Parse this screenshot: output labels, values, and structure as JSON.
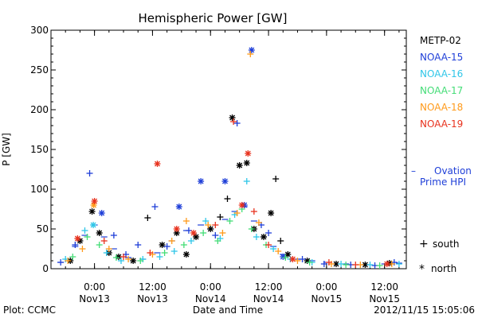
{
  "chart_data": {
    "type": "scatter",
    "title": "Hemispheric Power [GW]",
    "ylabel": "P [GW]",
    "xlabel": "Date and Time",
    "ylim": [
      0,
      300
    ],
    "yticks": [
      0,
      50,
      100,
      150,
      200,
      250,
      300
    ],
    "xlim": [
      "2012-11-12 15:00",
      "2012-11-15 16:30"
    ],
    "xticks": [
      {
        "t": "2012-11-13 00:00",
        "line1": "0:00",
        "line2": "Nov13"
      },
      {
        "t": "2012-11-13 12:00",
        "line1": "12:00",
        "line2": "Nov13"
      },
      {
        "t": "2012-11-14 00:00",
        "line1": "0:00",
        "line2": "Nov14"
      },
      {
        "t": "2012-11-14 12:00",
        "line1": "12:00",
        "line2": "Nov14"
      },
      {
        "t": "2012-11-15 00:00",
        "line1": "0:00",
        "line2": "Nov15"
      },
      {
        "t": "2012-11-15 12:00",
        "line1": "12:00",
        "line2": "Nov15"
      }
    ],
    "footer_left": "Plot: CCMC",
    "footer_right": "2012/11/15 15:05:06",
    "legend": {
      "placement": "right",
      "satellites": [
        {
          "name": "METP-02",
          "color": "#000000"
        },
        {
          "name": "NOAA-15",
          "color": "#1f3fd8"
        },
        {
          "name": "NOAA-16",
          "color": "#2fc6e8"
        },
        {
          "name": "NOAA-17",
          "color": "#44dd77"
        },
        {
          "name": "NOAA-18",
          "color": "#ff9a1a"
        },
        {
          "name": "NOAA-19",
          "color": "#e8321e"
        }
      ],
      "ovation_dash": "–",
      "ovation_label_1": "Ovation",
      "ovation_label_2": "Prime HPI",
      "ovation_color": "#1f3fd8",
      "south_symbol": "+",
      "south_label": "south",
      "north_symbol": "*",
      "north_label": "north"
    },
    "series": [
      {
        "name": "METP-02",
        "color": "#000000",
        "points": [
          [
            "2012-11-12 19:00",
            10,
            "*"
          ],
          [
            "2012-11-12 21:00",
            35,
            "*"
          ],
          [
            "2012-11-12 23:30",
            72,
            "*"
          ],
          [
            "2012-11-13 01:00",
            45,
            "*"
          ],
          [
            "2012-11-13 03:00",
            20,
            "*"
          ],
          [
            "2012-11-13 05:00",
            15,
            "*"
          ],
          [
            "2012-11-13 08:00",
            10,
            "*"
          ],
          [
            "2012-11-13 11:00",
            64,
            "+"
          ],
          [
            "2012-11-13 14:00",
            30,
            "*"
          ],
          [
            "2012-11-13 17:00",
            45,
            "*"
          ],
          [
            "2012-11-13 19:00",
            18,
            "*"
          ],
          [
            "2012-11-13 21:00",
            40,
            "*"
          ],
          [
            "2012-11-14 00:00",
            50,
            "*"
          ],
          [
            "2012-11-14 02:00",
            65,
            "+"
          ],
          [
            "2012-11-14 03:30",
            88,
            "+"
          ],
          [
            "2012-11-14 04:30",
            190,
            "*"
          ],
          [
            "2012-11-14 06:00",
            130,
            "*"
          ],
          [
            "2012-11-14 07:30",
            133,
            "*"
          ],
          [
            "2012-11-14 09:00",
            50,
            "*"
          ],
          [
            "2012-11-14 11:00",
            40,
            "*"
          ],
          [
            "2012-11-14 12:30",
            70,
            "*"
          ],
          [
            "2012-11-14 13:30",
            113,
            "+"
          ],
          [
            "2012-11-14 14:30",
            35,
            "+"
          ],
          [
            "2012-11-14 16:00",
            18,
            "*"
          ],
          [
            "2012-11-14 20:00",
            10,
            "*"
          ],
          [
            "2012-11-15 02:00",
            6,
            "*"
          ],
          [
            "2012-11-15 08:00",
            5,
            "*"
          ],
          [
            "2012-11-15 13:00",
            7,
            "*"
          ]
        ]
      },
      {
        "name": "NOAA-15",
        "color": "#1f3fd8",
        "points": [
          [
            "2012-11-12 17:00",
            8,
            "+"
          ],
          [
            "2012-11-12 20:00",
            30,
            "+"
          ],
          [
            "2012-11-12 23:00",
            120,
            "+"
          ],
          [
            "2012-11-13 01:30",
            70,
            "*"
          ],
          [
            "2012-11-13 04:00",
            42,
            "+"
          ],
          [
            "2012-11-13 06:30",
            18,
            "+"
          ],
          [
            "2012-11-13 09:00",
            30,
            "+"
          ],
          [
            "2012-11-13 12:30",
            78,
            "+"
          ],
          [
            "2012-11-13 15:00",
            28,
            "+"
          ],
          [
            "2012-11-13 17:30",
            78,
            "*"
          ],
          [
            "2012-11-13 19:30",
            48,
            "+"
          ],
          [
            "2012-11-13 22:00",
            110,
            "*"
          ],
          [
            "2012-11-14 01:00",
            42,
            "+"
          ],
          [
            "2012-11-14 03:00",
            110,
            "*"
          ],
          [
            "2012-11-14 05:30",
            183,
            "+"
          ],
          [
            "2012-11-14 07:00",
            80,
            "*"
          ],
          [
            "2012-11-14 08:30",
            275,
            "*"
          ],
          [
            "2012-11-14 10:30",
            55,
            "+"
          ],
          [
            "2012-11-14 12:00",
            45,
            "+"
          ],
          [
            "2012-11-14 15:00",
            15,
            "*"
          ],
          [
            "2012-11-14 19:00",
            12,
            "+"
          ],
          [
            "2012-11-14 23:30",
            6,
            "+"
          ],
          [
            "2012-11-15 05:00",
            5,
            "+"
          ],
          [
            "2012-11-15 10:00",
            4,
            "+"
          ],
          [
            "2012-11-15 14:00",
            8,
            "+"
          ]
        ]
      },
      {
        "name": "NOAA-16",
        "color": "#2fc6e8",
        "points": [
          [
            "2012-11-12 18:00",
            12,
            "+"
          ],
          [
            "2012-11-12 22:00",
            48,
            "+"
          ],
          [
            "2012-11-12 23:45",
            55,
            "*"
          ],
          [
            "2012-11-13 02:30",
            20,
            "+"
          ],
          [
            "2012-11-13 05:30",
            10,
            "+"
          ],
          [
            "2012-11-13 10:00",
            12,
            "+"
          ],
          [
            "2012-11-13 13:30",
            15,
            "+"
          ],
          [
            "2012-11-13 16:30",
            22,
            "+"
          ],
          [
            "2012-11-13 20:00",
            35,
            "+"
          ],
          [
            "2012-11-13 23:00",
            60,
            "+"
          ],
          [
            "2012-11-14 02:00",
            38,
            "+"
          ],
          [
            "2012-11-14 05:00",
            68,
            "+"
          ],
          [
            "2012-11-14 07:30",
            110,
            "+"
          ],
          [
            "2012-11-14 09:30",
            40,
            "+"
          ],
          [
            "2012-11-14 13:00",
            25,
            "+"
          ],
          [
            "2012-11-14 16:30",
            12,
            "+"
          ],
          [
            "2012-11-14 21:00",
            8,
            "+"
          ],
          [
            "2012-11-15 03:00",
            6,
            "+"
          ],
          [
            "2012-11-15 09:00",
            5,
            "+"
          ],
          [
            "2012-11-15 15:00",
            6,
            "+"
          ]
        ]
      },
      {
        "name": "NOAA-17",
        "color": "#44dd77",
        "points": [
          [
            "2012-11-12 19:30",
            15,
            "+"
          ],
          [
            "2012-11-12 22:30",
            40,
            "+"
          ],
          [
            "2012-11-13 01:00",
            30,
            "+"
          ],
          [
            "2012-11-13 04:30",
            14,
            "+"
          ],
          [
            "2012-11-13 09:30",
            10,
            "+"
          ],
          [
            "2012-11-13 14:30",
            20,
            "+"
          ],
          [
            "2012-11-13 18:30",
            30,
            "+"
          ],
          [
            "2012-11-13 22:30",
            45,
            "+"
          ],
          [
            "2012-11-14 01:30",
            35,
            "+"
          ],
          [
            "2012-11-14 04:00",
            60,
            "+"
          ],
          [
            "2012-11-14 06:30",
            75,
            "+"
          ],
          [
            "2012-11-14 08:30",
            50,
            "+"
          ],
          [
            "2012-11-14 11:30",
            30,
            "+"
          ],
          [
            "2012-11-14 15:30",
            14,
            "+"
          ],
          [
            "2012-11-14 20:30",
            8,
            "+"
          ],
          [
            "2012-11-15 04:00",
            5,
            "+"
          ],
          [
            "2012-11-15 11:00",
            4,
            "+"
          ]
        ]
      },
      {
        "name": "NOAA-18",
        "color": "#ff9a1a",
        "points": [
          [
            "2012-11-12 18:30",
            10,
            "+"
          ],
          [
            "2012-11-12 21:30",
            25,
            "+"
          ],
          [
            "2012-11-12 23:50",
            80,
            "*"
          ],
          [
            "2012-11-13 03:00",
            25,
            "+"
          ],
          [
            "2012-11-13 07:00",
            12,
            "+"
          ],
          [
            "2012-11-13 12:00",
            18,
            "+"
          ],
          [
            "2012-11-13 16:00",
            35,
            "+"
          ],
          [
            "2012-11-13 19:00",
            60,
            "+"
          ],
          [
            "2012-11-13 23:30",
            55,
            "+"
          ],
          [
            "2012-11-14 02:30",
            45,
            "+"
          ],
          [
            "2012-11-14 05:30",
            70,
            "+"
          ],
          [
            "2012-11-14 08:15",
            270,
            "+"
          ],
          [
            "2012-11-14 10:00",
            58,
            "+"
          ],
          [
            "2012-11-14 14:00",
            22,
            "+"
          ],
          [
            "2012-11-14 18:00",
            10,
            "+"
          ],
          [
            "2012-11-15 01:00",
            6,
            "+"
          ],
          [
            "2012-11-15 07:00",
            5,
            "+"
          ],
          [
            "2012-11-15 13:30",
            6,
            "+"
          ]
        ]
      },
      {
        "name": "NOAA-19",
        "color": "#e8321e",
        "points": [
          [
            "2012-11-12 20:30",
            38,
            "*"
          ],
          [
            "2012-11-13 00:00",
            85,
            "*"
          ],
          [
            "2012-11-13 02:00",
            35,
            "+"
          ],
          [
            "2012-11-13 06:00",
            15,
            "+"
          ],
          [
            "2012-11-13 11:30",
            20,
            "+"
          ],
          [
            "2012-11-13 13:00",
            132,
            "*"
          ],
          [
            "2012-11-13 17:00",
            50,
            "*"
          ],
          [
            "2012-11-13 20:30",
            45,
            "*"
          ],
          [
            "2012-11-14 01:00",
            55,
            "+"
          ],
          [
            "2012-11-14 04:45",
            185,
            "+"
          ],
          [
            "2012-11-14 06:30",
            80,
            "*"
          ],
          [
            "2012-11-14 07:45",
            145,
            "*"
          ],
          [
            "2012-11-14 09:00",
            72,
            "+"
          ],
          [
            "2012-11-14 12:00",
            30,
            "+"
          ],
          [
            "2012-11-14 17:00",
            12,
            "*"
          ],
          [
            "2012-11-15 00:30",
            8,
            "+"
          ],
          [
            "2012-11-15 06:00",
            5,
            "+"
          ],
          [
            "2012-11-15 12:30",
            6,
            "*"
          ]
        ]
      }
    ],
    "ovation_hpi": [
      [
        "2012-11-12 17:00",
        8
      ],
      [
        "2012-11-12 20:00",
        28
      ],
      [
        "2012-11-12 22:00",
        42
      ],
      [
        "2012-11-13 00:00",
        55
      ],
      [
        "2012-11-13 02:00",
        40
      ],
      [
        "2012-11-13 04:00",
        25
      ],
      [
        "2012-11-13 07:00",
        14
      ],
      [
        "2012-11-13 10:00",
        12
      ],
      [
        "2012-11-13 13:00",
        20
      ],
      [
        "2012-11-13 16:00",
        35
      ],
      [
        "2012-11-13 19:00",
        48
      ],
      [
        "2012-11-13 22:00",
        55
      ],
      [
        "2012-11-14 00:00",
        50
      ],
      [
        "2012-11-14 03:00",
        62
      ],
      [
        "2012-11-14 05:00",
        72
      ],
      [
        "2012-11-14 07:00",
        78
      ],
      [
        "2012-11-14 09:00",
        60
      ],
      [
        "2012-11-14 11:00",
        40
      ],
      [
        "2012-11-14 13:00",
        28
      ],
      [
        "2012-11-14 15:00",
        18
      ],
      [
        "2012-11-14 18:00",
        12
      ],
      [
        "2012-11-14 21:00",
        10
      ],
      [
        "2012-11-15 00:00",
        8
      ],
      [
        "2012-11-15 04:00",
        6
      ],
      [
        "2012-11-15 08:00",
        5
      ],
      [
        "2012-11-15 12:00",
        6
      ],
      [
        "2012-11-15 15:00",
        7
      ]
    ]
  }
}
